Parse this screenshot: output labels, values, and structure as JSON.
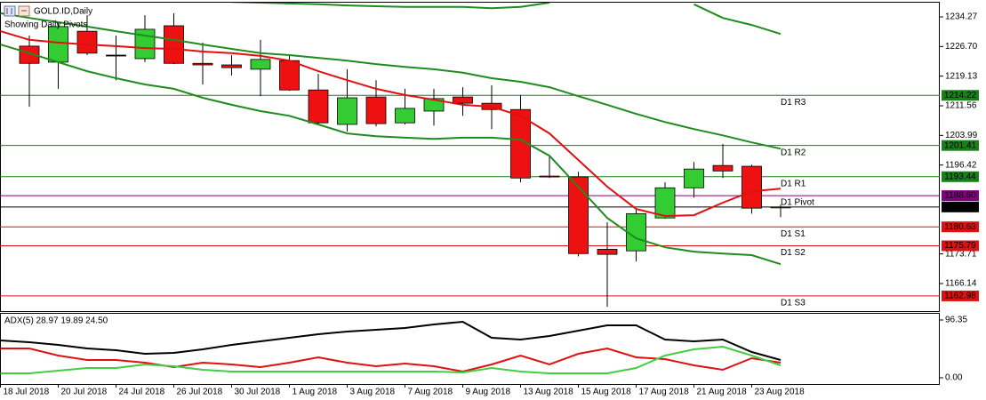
{
  "chart_data": [
    {
      "type": "candlestick",
      "title": "GOLD.ID,Daily",
      "subtitle": "Showing Daily Pivots",
      "categories": [
        "18 Jul 2018",
        null,
        "20 Jul 2018",
        null,
        "24 Jul 2018",
        null,
        "26 Jul 2018",
        null,
        "30 Jul 2018",
        null,
        "1 Aug 2018",
        null,
        "3 Aug 2018",
        null,
        "7 Aug 2018",
        null,
        "9 Aug 2018",
        null,
        "13 Aug 2018",
        null,
        "15 Aug 2018",
        null,
        "17 Aug 2018",
        null,
        "21 Aug 2018",
        null,
        "23 Aug 2018",
        null
      ],
      "open": [
        null,
        1226.8,
        1222.7,
        1230.6,
        1224.5,
        1223.6,
        1232.0,
        1222.4,
        1222.0,
        1220.9,
        1223.1,
        1215.6,
        1206.8,
        1213.8,
        1207.2,
        1210.2,
        1213.8,
        1212.2,
        1210.6,
        1193.6,
        1193.4,
        1174.9,
        1174.5,
        1182.9,
        1190.6,
        1196.3,
        1196.1,
        1185.6
      ],
      "high": [
        null,
        1229.5,
        1233.0,
        1234.7,
        1229.5,
        1234.7,
        1235.2,
        1227.7,
        1224.5,
        1228.4,
        1224.5,
        1219.7,
        1220.9,
        1218.1,
        1215.9,
        1215.9,
        1216.3,
        1216.8,
        1214.3,
        1198.8,
        1194.7,
        1181.8,
        1185.0,
        1192.0,
        1197.2,
        1201.8,
        1196.5,
        1186.3
      ],
      "low": [
        null,
        1211.3,
        1215.9,
        1224.5,
        1218.1,
        1222.7,
        1222.2,
        1217.0,
        1219.3,
        1214.0,
        1215.4,
        1206.8,
        1205.0,
        1206.3,
        1206.8,
        1206.5,
        1209.0,
        1205.6,
        1192.0,
        1193.1,
        1173.1,
        1160.2,
        1171.8,
        1182.7,
        1188.1,
        1193.1,
        1184.0,
        1183.1
      ],
      "close": [
        null,
        1222.4,
        1231.8,
        1225.0,
        1224.5,
        1231.1,
        1222.4,
        1222.0,
        1221.3,
        1223.4,
        1215.6,
        1207.2,
        1213.6,
        1207.0,
        1210.9,
        1213.4,
        1212.2,
        1210.6,
        1193.1,
        1193.4,
        1173.8,
        1173.6,
        1184.0,
        1190.6,
        1195.4,
        1194.9,
        1185.4,
        1185.7
      ],
      "up_color": "#33cc33",
      "down_color": "#ee1111",
      "series": [
        {
          "color": "#1e8c1e",
          "values": [
            null,
            null,
            null,
            null,
            null,
            null,
            null,
            null,
            1238.1,
            1237.9,
            1237.7,
            1237.5,
            1237.2,
            1237.0,
            1236.8,
            1236.8,
            1236.8,
            1236.5,
            1236.8,
            1237.9,
            null,
            null,
            null,
            null,
            1237.5,
            1234.0,
            1232.2,
            1229.9
          ]
        },
        {
          "color": "#1e8c1e",
          "values": [
            1235.2,
            1234.0,
            1232.9,
            1231.8,
            1230.6,
            1229.5,
            1228.4,
            1227.2,
            1226.1,
            1225.0,
            1224.5,
            1223.8,
            1223.1,
            1222.2,
            1221.5,
            1220.9,
            1220.0,
            1218.6,
            1217.7,
            1216.3,
            1214.0,
            1211.8,
            1209.5,
            1207.4,
            1205.6,
            1204.0,
            1202.2,
            1200.6
          ]
        },
        {
          "color": "#1e8c1e",
          "values": [
            1227.2,
            1225.0,
            1222.7,
            1220.4,
            1218.6,
            1217.0,
            1215.9,
            1213.6,
            1211.8,
            1210.2,
            1209.0,
            1206.8,
            1204.5,
            1203.8,
            1203.4,
            1203.1,
            1203.4,
            1203.4,
            1202.9,
            1198.8,
            1190.9,
            1182.9,
            1177.7,
            1175.4,
            1174.3,
            1173.8,
            1173.4,
            1171.1
          ]
        },
        {
          "color": "#e01010",
          "values": [
            1230.6,
            1228.4,
            1227.7,
            1227.2,
            1226.8,
            1226.3,
            1226.1,
            1225.4,
            1225.0,
            1224.3,
            1223.1,
            1220.4,
            1218.1,
            1215.9,
            1214.3,
            1213.1,
            1211.8,
            1211.3,
            1209.0,
            1204.5,
            1197.7,
            1190.9,
            1185.2,
            1183.4,
            1183.6,
            1186.8,
            1189.7,
            1190.4
          ]
        }
      ],
      "levels": [
        {
          "name": "D1 R3",
          "value": 1214.22,
          "color": "#1a7f1a"
        },
        {
          "name": "D1 R2",
          "value": 1201.41,
          "color": "#1a7f1a"
        },
        {
          "name": "D1 R1",
          "value": 1193.44,
          "color": "#1a7f1a"
        },
        {
          "name": "D1 Pivot",
          "value": 1188.6,
          "value_label": "1188.60",
          "color": "#800080"
        },
        {
          "name": "D1 S1",
          "value": 1180.63,
          "color": "#dd1111"
        },
        {
          "name": "D1 S2",
          "value": 1175.79,
          "color": "#dd1111"
        },
        {
          "name": "D1 S3",
          "value": 1162.98,
          "color": "#dd1111"
        }
      ],
      "last_price": 1185.71,
      "ylim": [
        1159.1,
        1237.9
      ],
      "yticks": [
        1234.27,
        {
          "value": 1226.7,
          "label": "1226.70"
        },
        1219.13,
        1211.56,
        1203.99,
        1196.42,
        1173.71,
        1166.14
      ]
    },
    {
      "type": "line",
      "title": "ADX(5) 28.97 19.89 24.50",
      "series": [
        {
          "color": "#000000",
          "values": [
            62.2,
            59.3,
            54.8,
            48.9,
            45.9,
            40.0,
            41.5,
            47.4,
            54.8,
            60.8,
            66.7,
            72.6,
            77.1,
            80.0,
            83.0,
            88.9,
            93.4,
            66.7,
            63.7,
            69.7,
            78.5,
            87.4,
            87.4,
            63.7,
            60.8,
            63.7,
            43.0,
            29.6
          ]
        },
        {
          "color": "#e01010",
          "values": [
            48.9,
            48.9,
            37.1,
            29.6,
            29.6,
            25.2,
            17.8,
            25.2,
            22.2,
            17.8,
            25.2,
            34.1,
            25.2,
            19.3,
            23.7,
            19.3,
            10.4,
            22.2,
            37.1,
            22.2,
            40.0,
            48.9,
            34.1,
            31.1,
            20.7,
            13.3,
            32.6,
            25.2
          ]
        },
        {
          "color": "#44cc44",
          "values": [
            7.4,
            7.4,
            11.9,
            16.3,
            16.3,
            22.2,
            19.3,
            13.3,
            10.4,
            10.4,
            10.4,
            10.4,
            10.4,
            10.4,
            10.4,
            10.4,
            8.9,
            16.3,
            10.4,
            7.4,
            7.4,
            7.4,
            16.3,
            37.1,
            47.4,
            51.9,
            37.1,
            20.7
          ]
        }
      ],
      "ylim": [
        -10.4,
        106.7
      ],
      "yticks": [
        96.35,
        {
          "value": 0,
          "label": "0.00"
        }
      ]
    }
  ]
}
